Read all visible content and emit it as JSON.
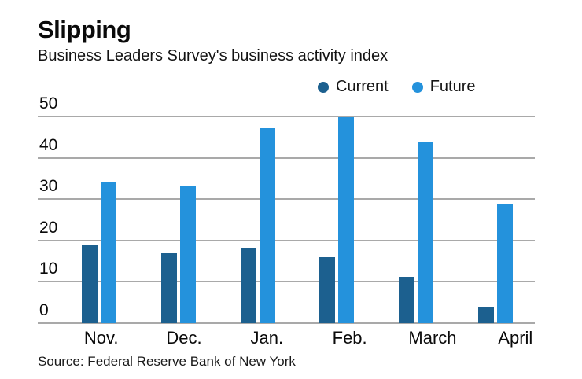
{
  "title": "Slipping",
  "subtitle": "Business Leaders Survey's business activity index",
  "source": "Source: Federal Reserve Bank of New York",
  "legend": [
    {
      "label": "Current",
      "color": "#1c608f"
    },
    {
      "label": "Future",
      "color": "#2492dc"
    }
  ],
  "colors": {
    "current_bar": "#1c608f",
    "future_bar": "#2492dc",
    "gridline": "#a9a9a9"
  },
  "chart_data": {
    "type": "bar",
    "title": "Slipping",
    "subtitle": "Business Leaders Survey's business activity index",
    "categories": [
      "Nov.",
      "Dec.",
      "Jan.",
      "Feb.",
      "March",
      "April"
    ],
    "series": [
      {
        "name": "Current",
        "color": "#1c608f",
        "values": [
          18.9,
          16.9,
          18.2,
          15.9,
          11.3,
          3.9
        ]
      },
      {
        "name": "Future",
        "color": "#2492dc",
        "values": [
          34.1,
          33.2,
          47.2,
          49.8,
          43.8,
          28.9
        ]
      }
    ],
    "xlabel": "",
    "ylabel": "",
    "ylim": [
      0,
      50
    ],
    "yticks": [
      0,
      10,
      20,
      30,
      40,
      50
    ],
    "grid": true,
    "legend_position": "top-right",
    "source": "Source: Federal Reserve Bank of New York"
  }
}
